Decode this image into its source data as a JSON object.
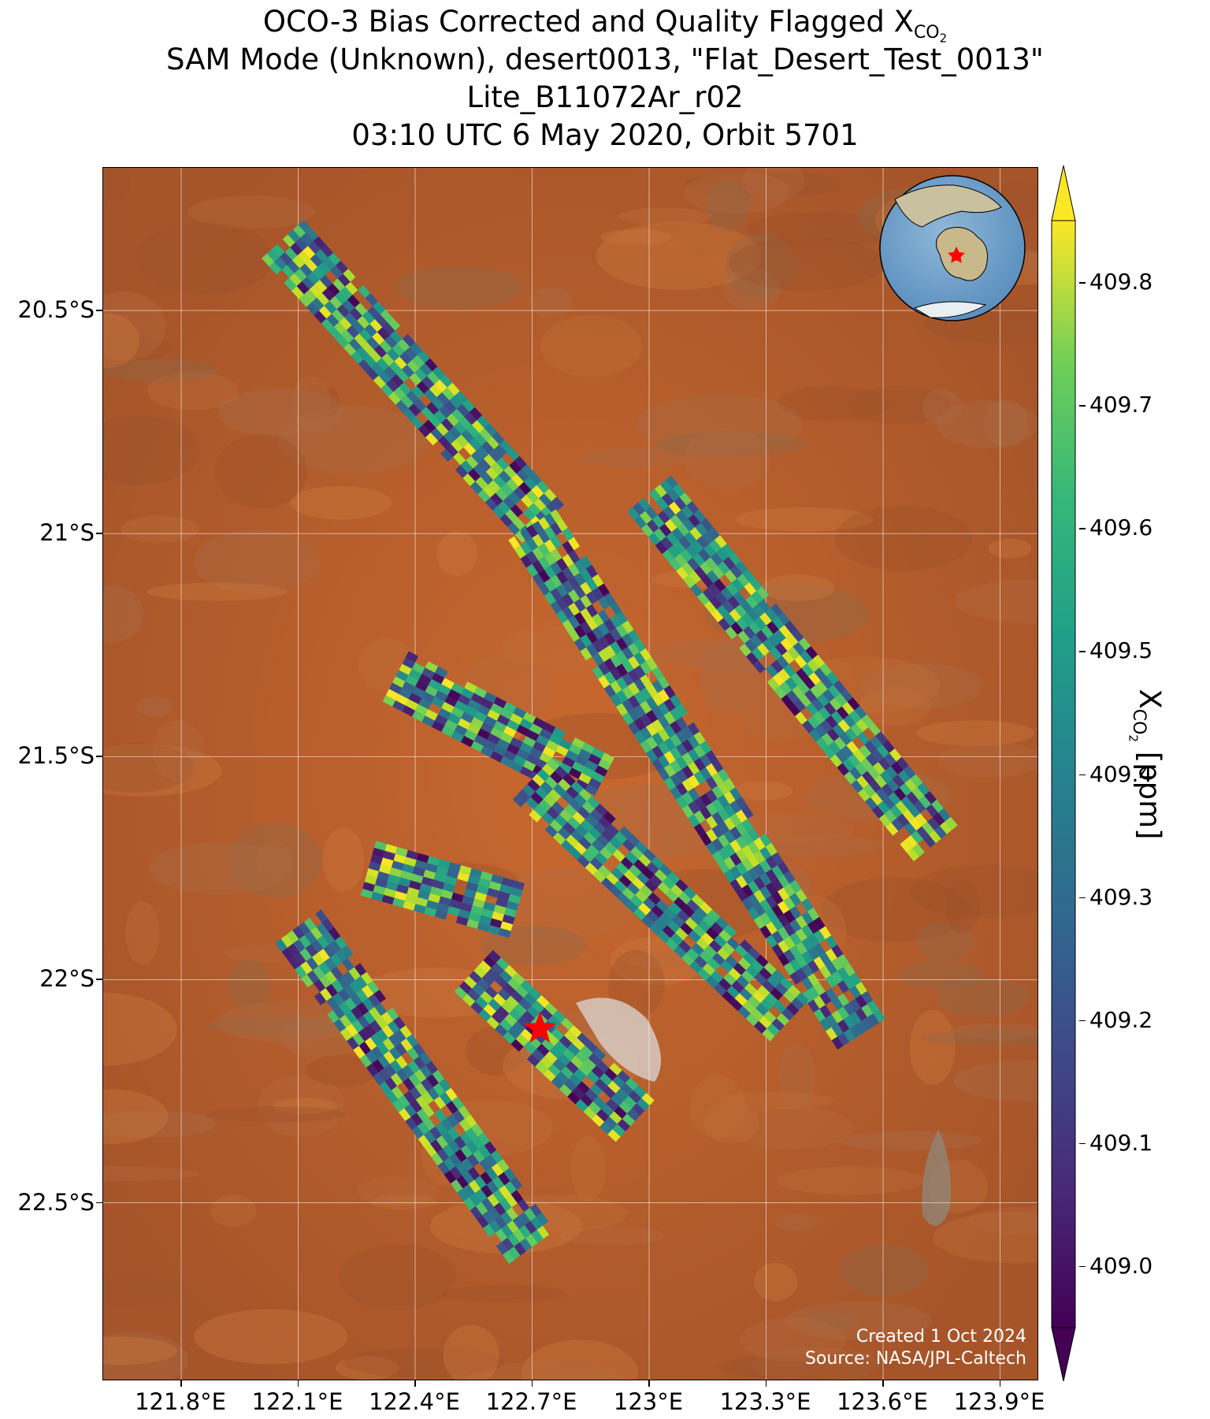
{
  "title": {
    "line1_prefix": "OCO-3 Bias Corrected and Quality Flagged X",
    "line1_sub": "CO",
    "line1_sub2": "2",
    "line2": "SAM Mode (Unknown), desert0013, \"Flat_Desert_Test_0013\"",
    "line3": "Lite_B11072Ar_r02",
    "line4": "03:10 UTC 6 May 2020, Orbit 5701"
  },
  "map": {
    "lon_range": [
      121.6,
      124.0
    ],
    "lat_range": [
      -22.9,
      -20.18
    ],
    "lat_ticks": [
      {
        "value": -20.5,
        "label": "20.5°S"
      },
      {
        "value": -21.0,
        "label": "21°S"
      },
      {
        "value": -21.5,
        "label": "21.5°S"
      },
      {
        "value": -22.0,
        "label": "22°S"
      },
      {
        "value": -22.5,
        "label": "22.5°S"
      }
    ],
    "lon_ticks": [
      {
        "value": 121.8,
        "label": "121.8°E"
      },
      {
        "value": 122.1,
        "label": "122.1°E"
      },
      {
        "value": 122.4,
        "label": "122.4°E"
      },
      {
        "value": 122.7,
        "label": "122.7°E"
      },
      {
        "value": 123.0,
        "label": "123°E"
      },
      {
        "value": 123.3,
        "label": "123.3°E"
      },
      {
        "value": 123.6,
        "label": "123.6°E"
      },
      {
        "value": 123.9,
        "label": "123.9°E"
      }
    ],
    "target_marker": {
      "lon": 122.72,
      "lat": -22.11,
      "color": "#ff0000",
      "icon": "star-icon"
    },
    "basemap": "satellite-desert",
    "swaths": [
      {
        "start": [
          122.06,
          -20.34
        ],
        "end": [
          122.73,
          -20.98
        ]
      },
      {
        "start": [
          122.7,
          -20.98
        ],
        "end": [
          123.55,
          -22.13
        ]
      },
      {
        "start": [
          123.0,
          -20.91
        ],
        "end": [
          123.75,
          -21.71
        ]
      },
      {
        "start": [
          122.35,
          -21.32
        ],
        "end": [
          122.88,
          -21.56
        ]
      },
      {
        "start": [
          122.7,
          -21.55
        ],
        "end": [
          123.37,
          -22.1
        ]
      },
      {
        "start": [
          122.28,
          -21.75
        ],
        "end": [
          122.68,
          -21.85
        ]
      },
      {
        "start": [
          122.55,
          -21.98
        ],
        "end": [
          122.98,
          -22.33
        ]
      },
      {
        "start": [
          122.1,
          -21.88
        ],
        "end": [
          122.7,
          -22.6
        ]
      }
    ]
  },
  "colorbar": {
    "colormap": "viridis",
    "range": [
      408.95,
      409.85
    ],
    "ticks": [
      "409.0",
      "409.1",
      "409.2",
      "409.3",
      "409.4",
      "409.5",
      "409.6",
      "409.7",
      "409.8"
    ],
    "label_prefix": "X",
    "label_sub": "CO",
    "label_sub2": "2",
    "label_suffix": " [ppm]"
  },
  "credit": {
    "line1": "Created 1 Oct 2024",
    "line2": "Source: NASA/JPL-Caltech"
  }
}
